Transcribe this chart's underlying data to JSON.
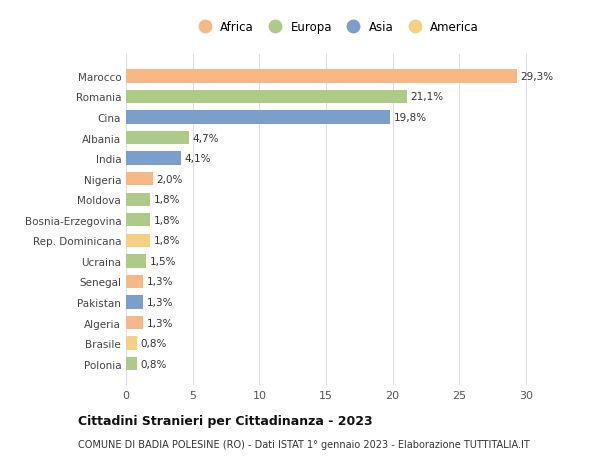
{
  "countries": [
    "Marocco",
    "Romania",
    "Cina",
    "Albania",
    "India",
    "Nigeria",
    "Moldova",
    "Bosnia-Erzegovina",
    "Rep. Dominicana",
    "Ucraina",
    "Senegal",
    "Pakistan",
    "Algeria",
    "Brasile",
    "Polonia"
  ],
  "values": [
    29.3,
    21.1,
    19.8,
    4.7,
    4.1,
    2.0,
    1.8,
    1.8,
    1.8,
    1.5,
    1.3,
    1.3,
    1.3,
    0.8,
    0.8
  ],
  "labels": [
    "29,3%",
    "21,1%",
    "19,8%",
    "4,7%",
    "4,1%",
    "2,0%",
    "1,8%",
    "1,8%",
    "1,8%",
    "1,5%",
    "1,3%",
    "1,3%",
    "1,3%",
    "0,8%",
    "0,8%"
  ],
  "continents": [
    "Africa",
    "Europa",
    "Asia",
    "Europa",
    "Asia",
    "Africa",
    "Europa",
    "Europa",
    "America",
    "Europa",
    "Africa",
    "Asia",
    "Africa",
    "America",
    "Europa"
  ],
  "continent_colors": {
    "Africa": "#F5B886",
    "Europa": "#AECA88",
    "Asia": "#7B9FCA",
    "America": "#F5D080"
  },
  "legend_order": [
    "Africa",
    "Europa",
    "Asia",
    "America"
  ],
  "title": "Cittadini Stranieri per Cittadinanza - 2023",
  "subtitle": "COMUNE DI BADIA POLESINE (RO) - Dati ISTAT 1° gennaio 2023 - Elaborazione TUTTITALIA.IT",
  "xlim": [
    0,
    31.5
  ],
  "xticks": [
    0,
    5,
    10,
    15,
    20,
    25,
    30
  ],
  "bg_color": "#ffffff",
  "grid_color": "#dddddd",
  "bar_height": 0.65
}
